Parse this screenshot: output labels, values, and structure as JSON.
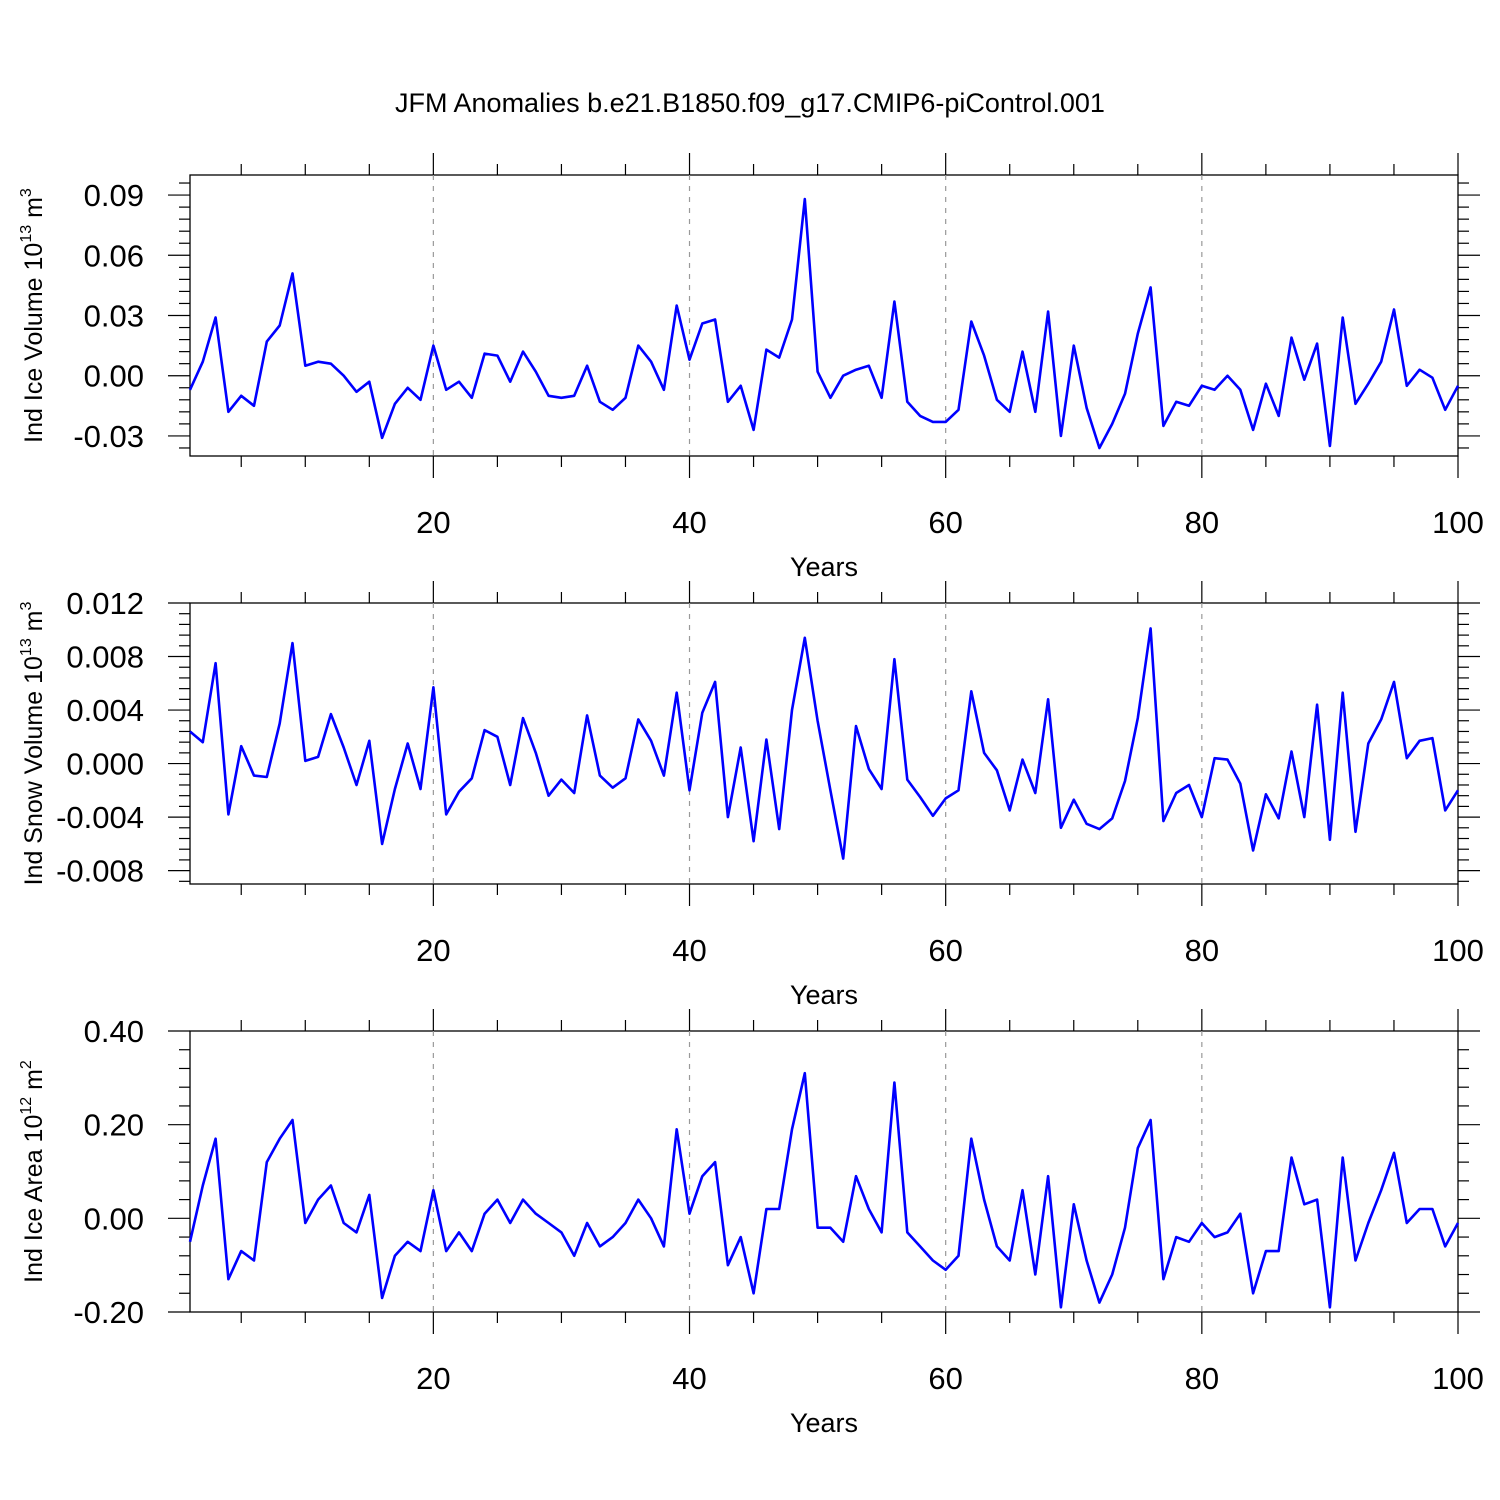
{
  "title": "JFM Anomalies b.e21.B1850.f09_g17.CMIP6-piControl.001",
  "line_color": "#0000ff",
  "chart_data": [
    {
      "type": "line",
      "xlabel": "Years",
      "ylabel": "Ind Ice Volume 10",
      "ylabel_exp": "13",
      "ylabel_unit": " m",
      "ylabel_unit_exp": "3",
      "xlim": [
        1,
        100
      ],
      "ylim": [
        -0.04,
        0.1
      ],
      "xticks": [
        20,
        40,
        60,
        80,
        100
      ],
      "yticks": [
        -0.03,
        0.0,
        0.03,
        0.06,
        0.09
      ],
      "yticklabels": [
        "-0.03",
        "0.00",
        "0.03",
        "0.06",
        "0.09"
      ],
      "grid_x": [
        20,
        40,
        60,
        80
      ],
      "series": [
        {
          "x_start": 1,
          "values": [
            -0.007,
            0.007,
            0.029,
            -0.018,
            -0.01,
            -0.015,
            0.017,
            0.025,
            0.051,
            0.005,
            0.007,
            0.006,
            0.0,
            -0.008,
            -0.003,
            -0.031,
            -0.014,
            -0.006,
            -0.012,
            0.015,
            -0.007,
            -0.003,
            -0.011,
            0.011,
            0.01,
            -0.003,
            0.012,
            0.002,
            -0.01,
            -0.011,
            -0.01,
            0.005,
            -0.013,
            -0.017,
            -0.011,
            0.015,
            0.007,
            -0.007,
            0.035,
            0.008,
            0.026,
            0.028,
            -0.013,
            -0.005,
            -0.027,
            0.013,
            0.009,
            0.028,
            0.088,
            0.002,
            -0.011,
            -0.0,
            0.003,
            0.005,
            -0.011,
            0.037,
            -0.013,
            -0.02,
            -0.023,
            -0.023,
            -0.017,
            0.027,
            0.01,
            -0.012,
            -0.018,
            0.012,
            -0.018,
            0.032,
            -0.03,
            0.015,
            -0.016,
            -0.036,
            -0.024,
            -0.009,
            0.021,
            0.044,
            -0.025,
            -0.013,
            -0.015,
            -0.005,
            -0.007,
            0.0,
            -0.007,
            -0.027,
            -0.004,
            -0.02,
            0.019,
            -0.002,
            0.016,
            -0.035,
            0.029,
            -0.014,
            -0.004,
            0.007,
            0.033,
            -0.005,
            0.003,
            -0.001,
            -0.017,
            -0.005
          ]
        }
      ]
    },
    {
      "type": "line",
      "xlabel": "Years",
      "ylabel": "Ind Snow Volume 10",
      "ylabel_exp": "13",
      "ylabel_unit": " m",
      "ylabel_unit_exp": "3",
      "xlim": [
        1,
        100
      ],
      "ylim": [
        -0.009,
        0.012
      ],
      "xticks": [
        20,
        40,
        60,
        80,
        100
      ],
      "yticks": [
        -0.008,
        -0.004,
        0.0,
        0.004,
        0.008,
        0.012
      ],
      "yticklabels": [
        "-0.008",
        "-0.004",
        "0.000",
        "0.004",
        "0.008",
        "0.012"
      ],
      "grid_x": [
        20,
        40,
        60,
        80
      ],
      "series": [
        {
          "x_start": 1,
          "values": [
            0.0024,
            0.0016,
            0.0075,
            -0.0038,
            0.0013,
            -0.0009,
            -0.001,
            0.003,
            0.009,
            0.0002,
            0.0005,
            0.0037,
            0.0012,
            -0.0016,
            0.0017,
            -0.006,
            -0.0019,
            0.0015,
            -0.0019,
            0.0057,
            -0.0038,
            -0.0021,
            -0.0011,
            0.0025,
            0.002,
            -0.0016,
            0.0034,
            0.0008,
            -0.0024,
            -0.0012,
            -0.0022,
            0.0036,
            -0.0009,
            -0.0018,
            -0.0011,
            0.0033,
            0.0017,
            -0.0009,
            0.0053,
            -0.002,
            0.0038,
            0.0061,
            -0.004,
            0.0012,
            -0.0058,
            0.0018,
            -0.0049,
            0.004,
            0.0094,
            0.0032,
            -0.002,
            -0.0071,
            0.0028,
            -0.0004,
            -0.0019,
            0.0078,
            -0.0012,
            -0.0025,
            -0.0039,
            -0.0026,
            -0.002,
            0.0054,
            0.0008,
            -0.0005,
            -0.0035,
            0.0003,
            -0.0022,
            0.0048,
            -0.0048,
            -0.0027,
            -0.0045,
            -0.0049,
            -0.0041,
            -0.0013,
            0.0034,
            0.0101,
            -0.0043,
            -0.0022,
            -0.0016,
            -0.004,
            0.0004,
            0.0003,
            -0.0015,
            -0.0065,
            -0.0023,
            -0.0041,
            0.0009,
            -0.004,
            0.0044,
            -0.0057,
            0.0053,
            -0.0051,
            0.0015,
            0.0033,
            0.0061,
            0.0004,
            0.0017,
            0.0019,
            -0.0035,
            -0.002
          ]
        }
      ]
    },
    {
      "type": "line",
      "xlabel": "Years",
      "ylabel": "Ind Ice Area 10",
      "ylabel_exp": "12",
      "ylabel_unit": " m",
      "ylabel_unit_exp": "2",
      "xlim": [
        1,
        100
      ],
      "ylim": [
        -0.2,
        0.4
      ],
      "xticks": [
        20,
        40,
        60,
        80,
        100
      ],
      "yticks": [
        -0.2,
        0.0,
        0.2,
        0.4
      ],
      "yticklabels": [
        "-0.20",
        "0.00",
        "0.20",
        "0.40"
      ],
      "grid_x": [
        20,
        40,
        60,
        80
      ],
      "series": [
        {
          "x_start": 1,
          "values": [
            -0.05,
            0.07,
            0.17,
            -0.13,
            -0.07,
            -0.09,
            0.12,
            0.17,
            0.21,
            -0.01,
            0.04,
            0.07,
            -0.01,
            -0.03,
            0.05,
            -0.17,
            -0.08,
            -0.05,
            -0.07,
            0.06,
            -0.07,
            -0.03,
            -0.07,
            0.01,
            0.04,
            -0.01,
            0.04,
            0.01,
            -0.01,
            -0.03,
            -0.08,
            -0.01,
            -0.06,
            -0.04,
            -0.01,
            0.04,
            0.0,
            -0.06,
            0.19,
            0.01,
            0.09,
            0.12,
            -0.1,
            -0.04,
            -0.16,
            0.02,
            0.02,
            0.19,
            0.31,
            -0.02,
            -0.02,
            -0.05,
            0.09,
            0.02,
            -0.03,
            0.29,
            -0.03,
            -0.06,
            -0.09,
            -0.11,
            -0.08,
            0.17,
            0.04,
            -0.06,
            -0.09,
            0.06,
            -0.12,
            0.09,
            -0.19,
            0.03,
            -0.09,
            -0.18,
            -0.12,
            -0.02,
            0.15,
            0.21,
            -0.13,
            -0.04,
            -0.05,
            -0.01,
            -0.04,
            -0.03,
            0.01,
            -0.16,
            -0.07,
            -0.07,
            0.13,
            0.03,
            0.04,
            -0.19,
            0.13,
            -0.09,
            -0.01,
            0.06,
            0.14,
            -0.01,
            0.02,
            0.02,
            -0.06,
            -0.01
          ]
        }
      ]
    }
  ]
}
